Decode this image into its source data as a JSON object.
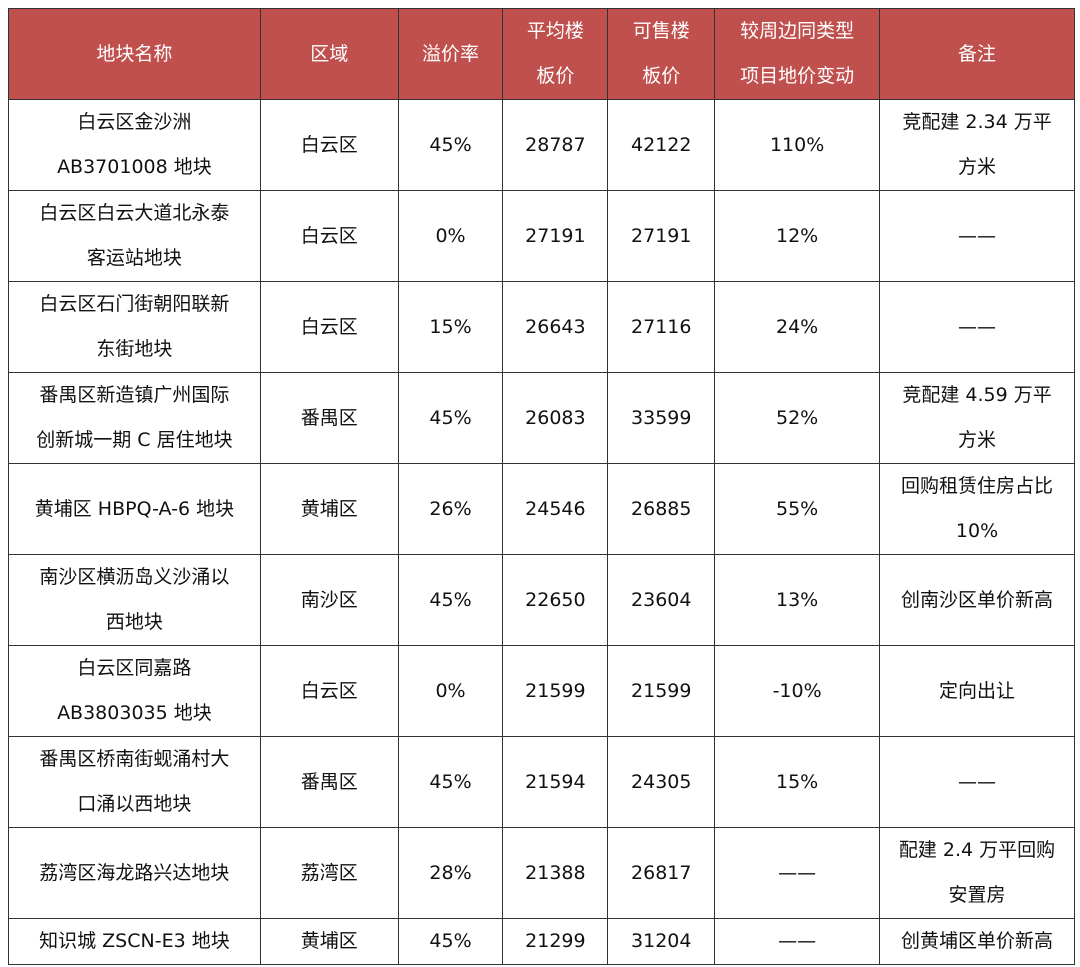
{
  "table": {
    "header": [
      [
        "地块名称"
      ],
      [
        "区域"
      ],
      [
        "溢价率"
      ],
      [
        "平均楼",
        "板价"
      ],
      [
        "可售楼",
        "板价"
      ],
      [
        "较周边同类型",
        "项目地价变动"
      ],
      [
        "备注"
      ]
    ],
    "rows": [
      [
        [
          "白云区金沙洲",
          "AB3701008 地块"
        ],
        [
          "白云区"
        ],
        [
          "45%"
        ],
        [
          "28787"
        ],
        [
          "42122"
        ],
        [
          "110%"
        ],
        [
          "竞配建 2.34 万平",
          "方米"
        ]
      ],
      [
        [
          "白云区白云大道北永泰",
          "客运站地块"
        ],
        [
          "白云区"
        ],
        [
          "0%"
        ],
        [
          "27191"
        ],
        [
          "27191"
        ],
        [
          "12%"
        ],
        [
          "——"
        ]
      ],
      [
        [
          "白云区石门街朝阳联新",
          "东街地块"
        ],
        [
          "白云区"
        ],
        [
          "15%"
        ],
        [
          "26643"
        ],
        [
          "27116"
        ],
        [
          "24%"
        ],
        [
          "——"
        ]
      ],
      [
        [
          "番禺区新造镇广州国际",
          "创新城一期 C 居住地块"
        ],
        [
          "番禺区"
        ],
        [
          "45%"
        ],
        [
          "26083"
        ],
        [
          "33599"
        ],
        [
          "52%"
        ],
        [
          "竞配建 4.59 万平",
          "方米"
        ]
      ],
      [
        [
          "黄埔区 HBPQ-A-6 地块"
        ],
        [
          "黄埔区"
        ],
        [
          "26%"
        ],
        [
          "24546"
        ],
        [
          "26885"
        ],
        [
          "55%"
        ],
        [
          "回购租赁住房占比",
          "10%"
        ]
      ],
      [
        [
          "南沙区横沥岛义沙涌以",
          "西地块"
        ],
        [
          "南沙区"
        ],
        [
          "45%"
        ],
        [
          "22650"
        ],
        [
          "23604"
        ],
        [
          "13%"
        ],
        [
          "创南沙区单价新高"
        ]
      ],
      [
        [
          "白云区同嘉路",
          "AB3803035 地块"
        ],
        [
          "白云区"
        ],
        [
          "0%"
        ],
        [
          "21599"
        ],
        [
          "21599"
        ],
        [
          "-10%"
        ],
        [
          "定向出让"
        ]
      ],
      [
        [
          "番禺区桥南街蚬涌村大",
          "口涌以西地块"
        ],
        [
          "番禺区"
        ],
        [
          "45%"
        ],
        [
          "21594"
        ],
        [
          "24305"
        ],
        [
          "15%"
        ],
        [
          "——"
        ]
      ],
      [
        [
          "荔湾区海龙路兴达地块"
        ],
        [
          "荔湾区"
        ],
        [
          "28%"
        ],
        [
          "21388"
        ],
        [
          "26817"
        ],
        [
          "——"
        ],
        [
          "配建 2.4 万平回购",
          "安置房"
        ]
      ],
      [
        [
          "知识城 ZSCN-E3 地块"
        ],
        [
          "黄埔区"
        ],
        [
          "45%"
        ],
        [
          "21299"
        ],
        [
          "31204"
        ],
        [
          "——"
        ],
        [
          "创黄埔区单价新高"
        ]
      ]
    ]
  }
}
